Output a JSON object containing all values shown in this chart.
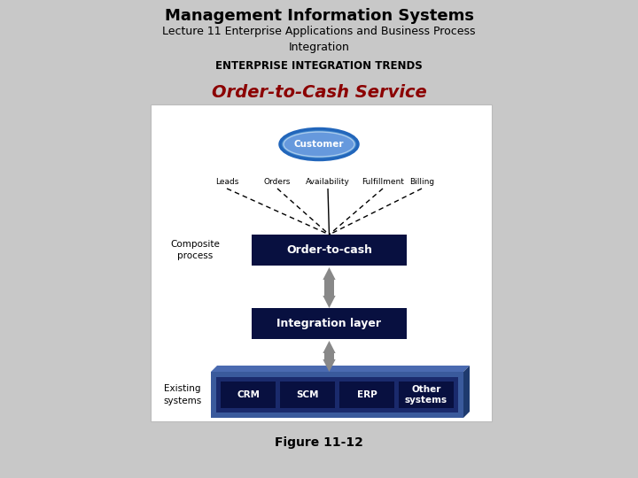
{
  "title": "Management Information Systems",
  "subtitle": "Lecture 11 Enterprise Applications and Business Process\nIntegration",
  "section_label": "ENTERPRISE INTEGRATION TRENDS",
  "main_title": "Order-to-Cash Service",
  "figure_label": "Figure 11-12",
  "bg_color": "#c8c8c8",
  "diagram_bg": "#ffffff",
  "dark_navy": "#081040",
  "medium_navy": "#1a2a6c",
  "light_navy_outer": "#3a5a9c",
  "light_navy_inner": "#2a3a7c",
  "arrow_color": "#888888",
  "customer_fill": "#6699dd",
  "customer_stroke": "#2266bb",
  "customer_outer": "#4488cc",
  "labels": [
    "Leads",
    "Orders",
    "Availability",
    "Fulfillment",
    "Billing"
  ],
  "systems": [
    "CRM",
    "SCM",
    "ERP",
    "Other\nsystems"
  ],
  "composite_label": "Composite\nprocess",
  "existing_label": "Existing\nsystems",
  "order_to_cash_text": "Order-to-cash",
  "integration_layer_text": "Integration layer",
  "title_fontsize": 13,
  "subtitle_fontsize": 9,
  "section_fontsize": 8.5,
  "main_title_fontsize": 14
}
